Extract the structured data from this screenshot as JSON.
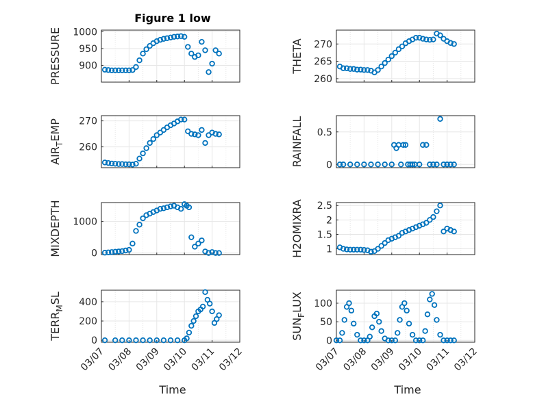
{
  "figure": {
    "title": "Figure 1 low",
    "xlabel": "Time",
    "xticks": [
      "03/07",
      "03/08",
      "03/09",
      "03/10",
      "03/11",
      "03/12"
    ],
    "marker_color": "#0072bd"
  },
  "chart_data": [
    {
      "type": "scatter",
      "ylabel": "PRESSURE",
      "ylim": [
        850,
        1005
      ],
      "yticks": [
        "900",
        "950",
        "1000"
      ],
      "grid": true,
      "x": [
        "03/07 03:00",
        "03/07 06:00",
        "03/07 09:00",
        "03/07 12:00",
        "03/07 15:00",
        "03/07 18:00",
        "03/07 21:00",
        "03/08 00:00",
        "03/08 03:00",
        "03/08 06:00",
        "03/08 09:00",
        "03/08 12:00",
        "03/08 15:00",
        "03/08 18:00",
        "03/08 21:00",
        "03/09 00:00",
        "03/09 03:00",
        "03/09 06:00",
        "03/09 09:00",
        "03/09 12:00",
        "03/09 15:00",
        "03/09 18:00",
        "03/09 21:00",
        "03/10 00:00",
        "03/10 03:00",
        "03/10 06:00",
        "03/10 09:00",
        "03/10 12:00",
        "03/10 15:00",
        "03/10 18:00",
        "03/10 21:00",
        "03/11 00:00",
        "03/11 03:00",
        "03/11 06:00"
      ],
      "y": [
        887,
        886,
        885,
        885,
        885,
        885,
        885,
        885,
        886,
        895,
        915,
        935,
        948,
        958,
        966,
        972,
        976,
        979,
        981,
        983,
        985,
        986,
        987,
        985,
        955,
        935,
        925,
        930,
        970,
        945,
        880,
        905,
        945,
        935
      ]
    },
    {
      "type": "scatter",
      "ylabel": "THETA",
      "ylim": [
        259,
        274
      ],
      "yticks": [
        "260",
        "265",
        "270"
      ],
      "grid": true,
      "x": [
        "03/07 03:00",
        "03/07 06:00",
        "03/07 09:00",
        "03/07 12:00",
        "03/07 15:00",
        "03/07 18:00",
        "03/07 21:00",
        "03/08 00:00",
        "03/08 03:00",
        "03/08 06:00",
        "03/08 09:00",
        "03/08 12:00",
        "03/08 15:00",
        "03/08 18:00",
        "03/08 21:00",
        "03/09 00:00",
        "03/09 03:00",
        "03/09 06:00",
        "03/09 09:00",
        "03/09 12:00",
        "03/09 15:00",
        "03/09 18:00",
        "03/09 21:00",
        "03/10 00:00",
        "03/10 03:00",
        "03/10 06:00",
        "03/10 09:00",
        "03/10 12:00",
        "03/10 15:00",
        "03/10 18:00",
        "03/10 21:00",
        "03/11 00:00",
        "03/11 03:00",
        "03/11 06:00"
      ],
      "y": [
        263.5,
        263,
        263,
        262.8,
        262.8,
        262.6,
        262.6,
        262.5,
        262.5,
        262.3,
        261.8,
        262.5,
        263.5,
        264.5,
        265.5,
        266.5,
        267.5,
        268.5,
        269.3,
        270.2,
        270.8,
        271.3,
        271.8,
        271.8,
        271.5,
        271.3,
        271.2,
        271.3,
        273,
        272.5,
        271.5,
        270.8,
        270.3,
        270
      ]
    },
    {
      "type": "scatter",
      "ylabel": "AIR_TEMP",
      "ylim": [
        252,
        272
      ],
      "yticks": [
        "260",
        "270"
      ],
      "grid": true,
      "x": [
        "03/07 03:00",
        "03/07 06:00",
        "03/07 09:00",
        "03/07 12:00",
        "03/07 15:00",
        "03/07 18:00",
        "03/07 21:00",
        "03/08 00:00",
        "03/08 03:00",
        "03/08 06:00",
        "03/08 09:00",
        "03/08 12:00",
        "03/08 15:00",
        "03/08 18:00",
        "03/08 21:00",
        "03/09 00:00",
        "03/09 03:00",
        "03/09 06:00",
        "03/09 09:00",
        "03/09 12:00",
        "03/09 15:00",
        "03/09 18:00",
        "03/09 21:00",
        "03/10 00:00",
        "03/10 03:00",
        "03/10 06:00",
        "03/10 09:00",
        "03/10 12:00",
        "03/10 15:00",
        "03/10 18:00",
        "03/10 21:00",
        "03/11 00:00",
        "03/11 03:00",
        "03/11 06:00"
      ],
      "y": [
        254,
        253.8,
        253.6,
        253.5,
        253.4,
        253.4,
        253.3,
        253.3,
        253.2,
        253.5,
        255.5,
        257.5,
        259.5,
        261.5,
        263,
        264.5,
        265.5,
        266.5,
        267.5,
        268.3,
        269,
        269.8,
        270.5,
        270.5,
        266,
        265,
        264.8,
        264.5,
        266.5,
        261.5,
        264.5,
        265.5,
        265,
        264.8
      ]
    },
    {
      "type": "scatter",
      "ylabel": "RAINFALL",
      "ylim": [
        -0.05,
        0.75
      ],
      "yticks": [
        "0",
        "0.5"
      ],
      "grid": true,
      "x": [
        "03/07 03:00",
        "03/07 06:00",
        "03/07 12:00",
        "03/07 18:00",
        "03/08 00:00",
        "03/08 06:00",
        "03/08 12:00",
        "03/08 18:00",
        "03/09 00:00",
        "03/09 02:00",
        "03/09 04:00",
        "03/09 06:00",
        "03/09 08:00",
        "03/09 10:00",
        "03/09 12:00",
        "03/09 14:00",
        "03/09 16:00",
        "03/09 18:00",
        "03/09 20:00",
        "03/10 00:00",
        "03/10 03:00",
        "03/10 06:00",
        "03/10 09:00",
        "03/10 12:00",
        "03/10 15:00",
        "03/10 18:00",
        "03/10 21:00",
        "03/11 00:00",
        "03/11 03:00",
        "03/11 06:00"
      ],
      "y": [
        0,
        0,
        0,
        0,
        0,
        0,
        0,
        0,
        0,
        0.3,
        0.25,
        0.3,
        0,
        0.3,
        0.3,
        0,
        0,
        0,
        0,
        0,
        0.3,
        0.3,
        0,
        0,
        0,
        0.7,
        0,
        0,
        0,
        0
      ]
    },
    {
      "type": "scatter",
      "ylabel": "MIXDEPTH",
      "ylim": [
        -50,
        1600
      ],
      "yticks": [
        "0",
        "1000"
      ],
      "grid": true,
      "x": [
        "03/07 03:00",
        "03/07 06:00",
        "03/07 09:00",
        "03/07 12:00",
        "03/07 15:00",
        "03/07 18:00",
        "03/07 21:00",
        "03/08 00:00",
        "03/08 03:00",
        "03/08 06:00",
        "03/08 09:00",
        "03/08 12:00",
        "03/08 15:00",
        "03/08 18:00",
        "03/08 21:00",
        "03/09 00:00",
        "03/09 03:00",
        "03/09 06:00",
        "03/09 09:00",
        "03/09 12:00",
        "03/09 15:00",
        "03/09 18:00",
        "03/09 21:00",
        "03/10 00:00",
        "03/10 02:00",
        "03/10 04:00",
        "03/10 06:00",
        "03/10 09:00",
        "03/10 12:00",
        "03/10 15:00",
        "03/10 18:00",
        "03/10 21:00",
        "03/11 00:00",
        "03/11 03:00",
        "03/11 06:00"
      ],
      "y": [
        10,
        20,
        30,
        40,
        50,
        60,
        80,
        100,
        300,
        700,
        900,
        1100,
        1200,
        1250,
        1300,
        1350,
        1400,
        1420,
        1450,
        1480,
        1500,
        1450,
        1400,
        1550,
        1500,
        1450,
        500,
        200,
        300,
        400,
        50,
        0,
        30,
        0,
        0
      ]
    },
    {
      "type": "scatter",
      "ylabel": "H2OMIXRA",
      "ylim": [
        0.8,
        2.6
      ],
      "yticks": [
        "1",
        "1.5",
        "2",
        "2.5"
      ],
      "grid": true,
      "x": [
        "03/07 03:00",
        "03/07 06:00",
        "03/07 09:00",
        "03/07 12:00",
        "03/07 15:00",
        "03/07 18:00",
        "03/07 21:00",
        "03/08 00:00",
        "03/08 03:00",
        "03/08 06:00",
        "03/08 09:00",
        "03/08 12:00",
        "03/08 15:00",
        "03/08 18:00",
        "03/08 21:00",
        "03/09 00:00",
        "03/09 03:00",
        "03/09 06:00",
        "03/09 09:00",
        "03/09 12:00",
        "03/09 15:00",
        "03/09 18:00",
        "03/09 21:00",
        "03/10 00:00",
        "03/10 03:00",
        "03/10 06:00",
        "03/10 09:00",
        "03/10 12:00",
        "03/10 15:00",
        "03/10 18:00",
        "03/10 21:00",
        "03/11 00:00",
        "03/11 03:00",
        "03/11 06:00"
      ],
      "y": [
        1.05,
        1,
        0.98,
        0.97,
        0.97,
        0.97,
        0.97,
        0.96,
        0.95,
        0.9,
        0.92,
        1,
        1.1,
        1.2,
        1.3,
        1.35,
        1.4,
        1.45,
        1.55,
        1.6,
        1.65,
        1.7,
        1.75,
        1.8,
        1.85,
        1.9,
        2,
        2.1,
        2.3,
        2.5,
        1.6,
        1.7,
        1.65,
        1.6
      ]
    },
    {
      "type": "scatter",
      "ylabel": "TERR_MSL",
      "ylim": [
        -20,
        520
      ],
      "yticks": [
        "0",
        "200",
        "400"
      ],
      "grid": true,
      "x": [
        "03/07 03:00",
        "03/07 12:00",
        "03/07 18:00",
        "03/08 00:00",
        "03/08 06:00",
        "03/08 12:00",
        "03/08 18:00",
        "03/09 00:00",
        "03/09 06:00",
        "03/09 12:00",
        "03/09 18:00",
        "03/10 00:00",
        "03/10 02:00",
        "03/10 04:00",
        "03/10 06:00",
        "03/10 08:00",
        "03/10 10:00",
        "03/10 12:00",
        "03/10 14:00",
        "03/10 16:00",
        "03/10 18:00",
        "03/10 20:00",
        "03/10 22:00",
        "03/11 00:00",
        "03/11 02:00",
        "03/11 04:00",
        "03/11 06:00"
      ],
      "y": [
        0,
        0,
        0,
        0,
        0,
        0,
        0,
        0,
        0,
        0,
        0,
        0,
        20,
        80,
        150,
        200,
        250,
        300,
        320,
        350,
        500,
        420,
        380,
        300,
        180,
        220,
        260
      ]
    },
    {
      "type": "scatter",
      "ylabel": "SUN_FLUX",
      "ylim": [
        -5,
        135
      ],
      "yticks": [
        "0",
        "50",
        "100"
      ],
      "grid": true,
      "x": [
        "03/07 00:00",
        "03/07 03:00",
        "03/07 05:00",
        "03/07 07:00",
        "03/07 09:00",
        "03/07 11:00",
        "03/07 13:00",
        "03/07 15:00",
        "03/07 18:00",
        "03/07 21:00",
        "03/08 00:00",
        "03/08 03:00",
        "03/08 05:00",
        "03/08 07:00",
        "03/08 09:00",
        "03/08 11:00",
        "03/08 13:00",
        "03/08 15:00",
        "03/08 18:00",
        "03/08 21:00",
        "03/09 00:00",
        "03/09 03:00",
        "03/09 05:00",
        "03/09 07:00",
        "03/09 09:00",
        "03/09 11:00",
        "03/09 13:00",
        "03/09 15:00",
        "03/09 18:00",
        "03/09 21:00",
        "03/10 00:00",
        "03/10 03:00",
        "03/10 05:00",
        "03/10 07:00",
        "03/10 09:00",
        "03/10 11:00",
        "03/10 13:00",
        "03/10 15:00",
        "03/10 18:00",
        "03/10 21:00",
        "03/11 00:00",
        "03/11 03:00",
        "03/11 06:00"
      ],
      "y": [
        0,
        0,
        20,
        55,
        90,
        100,
        80,
        45,
        15,
        0,
        0,
        0,
        10,
        35,
        65,
        72,
        50,
        25,
        5,
        0,
        0,
        0,
        20,
        55,
        90,
        100,
        80,
        45,
        15,
        0,
        0,
        0,
        25,
        70,
        110,
        125,
        95,
        55,
        15,
        0,
        0,
        0,
        0
      ]
    }
  ]
}
